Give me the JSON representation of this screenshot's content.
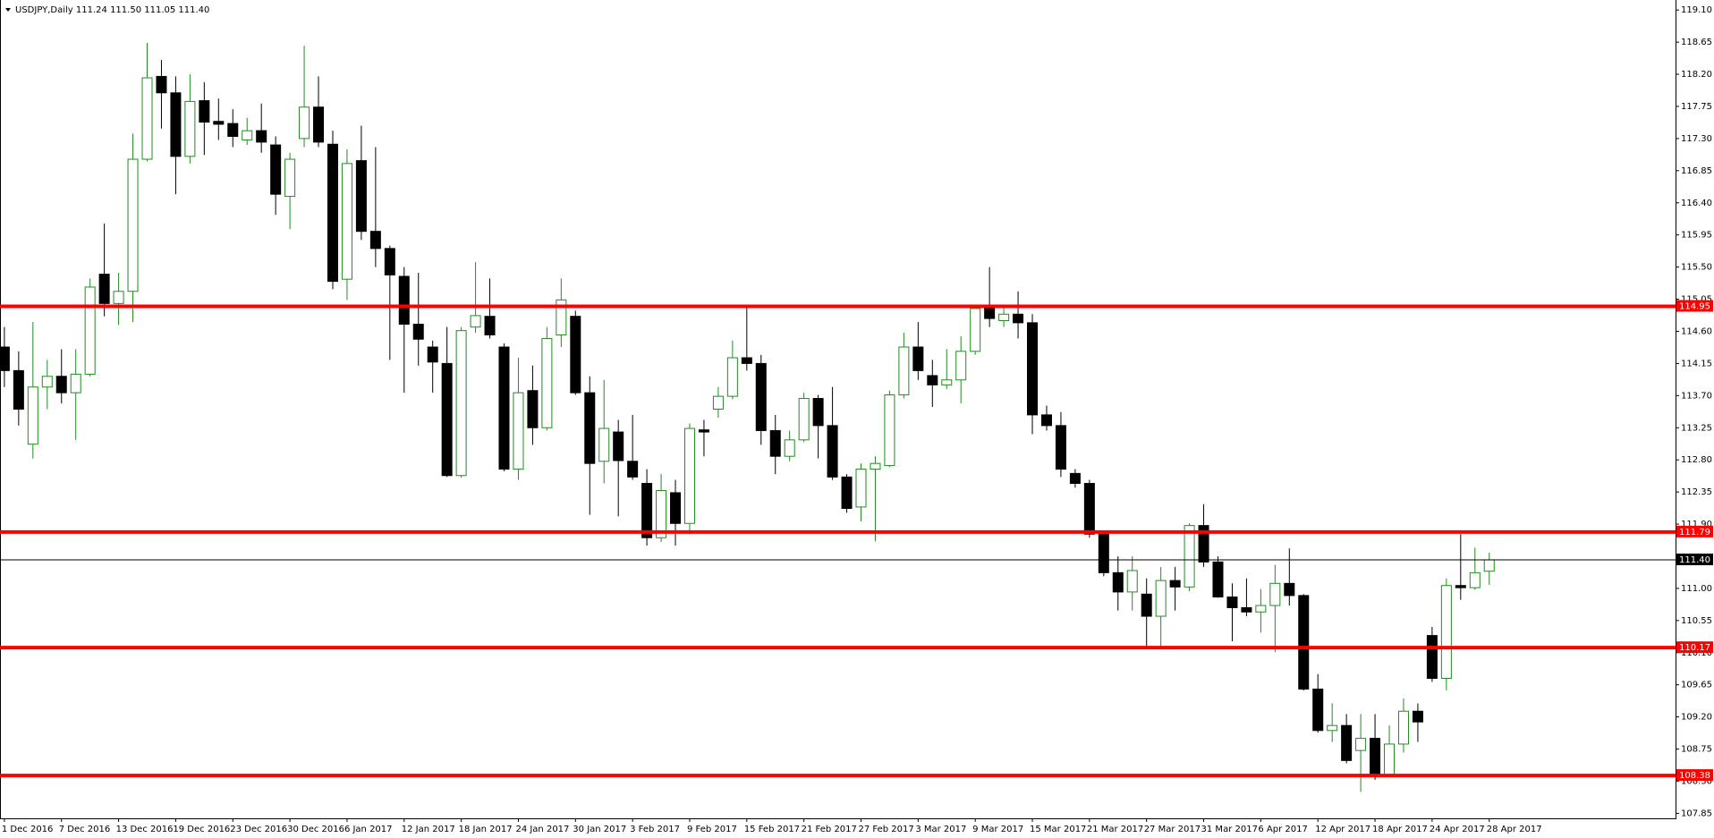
{
  "chart_data": {
    "type": "candlestick",
    "title": "USDJPY,Daily  111.24 111.50 111.05 111.40",
    "categories": [
      "1 Dec 2016",
      null,
      null,
      null,
      "7 Dec 2016",
      null,
      null,
      null,
      "13 Dec 2016",
      null,
      null,
      null,
      "19 Dec 2016",
      null,
      null,
      null,
      "23 Dec 2016",
      null,
      null,
      null,
      "30 Dec 2016",
      null,
      null,
      null,
      "6 Jan 2017",
      null,
      null,
      null,
      "12 Jan 2017",
      null,
      null,
      null,
      "18 Jan 2017",
      null,
      null,
      null,
      "24 Jan 2017",
      null,
      null,
      null,
      "30 Jan 2017",
      null,
      null,
      null,
      "3 Feb 2017",
      null,
      null,
      null,
      "9 Feb 2017",
      null,
      null,
      null,
      "15 Feb 2017",
      null,
      null,
      null,
      "21 Feb 2017",
      null,
      null,
      null,
      "27 Feb 2017",
      null,
      null,
      null,
      "3 Mar 2017",
      null,
      null,
      null,
      "9 Mar 2017",
      null,
      null,
      null,
      "15 Mar 2017",
      null,
      null,
      null,
      "21 Mar 2017",
      null,
      null,
      null,
      "27 Mar 2017",
      null,
      null,
      null,
      "31 Mar 2017",
      null,
      null,
      null,
      "6 Apr 2017",
      null,
      null,
      null,
      "12 Apr 2017",
      null,
      null,
      null,
      "18 Apr 2017",
      null,
      null,
      null,
      "24 Apr 2017",
      null,
      null,
      null,
      "28 Apr 2017"
    ],
    "open": [
      114.38,
      114.05,
      113.02,
      113.82,
      113.97,
      113.74,
      114.0,
      115.4,
      114.99,
      115.16,
      117.01,
      118.17,
      117.94,
      117.05,
      117.83,
      117.54,
      117.51,
      117.28,
      117.41,
      117.21,
      116.49,
      117.3,
      117.74,
      117.22,
      115.33,
      116.99,
      116.0,
      115.76,
      115.37,
      114.7,
      114.38,
      114.15,
      112.58,
      114.66,
      114.81,
      114.38,
      112.67,
      113.77,
      113.25,
      114.55,
      114.81,
      113.74,
      112.78,
      113.19,
      112.78,
      112.47,
      111.71,
      112.34,
      111.91,
      113.22,
      113.51,
      113.69,
      114.23,
      114.15,
      113.21,
      112.85,
      113.08,
      113.66,
      113.28,
      112.56,
      112.14,
      112.67,
      112.72,
      113.71,
      114.38,
      113.98,
      113.85,
      113.92,
      114.32,
      114.92,
      114.75,
      114.84,
      114.72,
      113.43,
      113.28,
      112.61,
      112.47,
      111.76,
      111.22,
      110.95,
      110.92,
      110.61,
      111.11,
      111.02,
      111.88,
      111.37,
      110.88,
      110.73,
      110.67,
      110.76,
      111.07,
      110.9,
      109.59,
      109.01,
      109.08,
      108.73,
      108.9,
      108.37,
      108.82,
      109.28,
      110.34,
      109.74,
      111.04,
      111.01,
      111.24
    ],
    "high": [
      114.66,
      114.32,
      114.73,
      114.2,
      114.35,
      114.35,
      115.34,
      116.11,
      115.42,
      117.37,
      118.64,
      118.4,
      118.17,
      118.2,
      118.09,
      117.86,
      117.71,
      117.59,
      117.79,
      117.33,
      117.1,
      118.6,
      118.17,
      117.41,
      117.15,
      117.48,
      117.18,
      115.8,
      115.5,
      115.42,
      114.47,
      114.66,
      114.66,
      115.57,
      115.34,
      114.43,
      114.23,
      114.12,
      114.66,
      115.34,
      114.89,
      113.97,
      113.92,
      113.36,
      113.43,
      112.67,
      112.6,
      112.52,
      113.31,
      113.36,
      113.82,
      114.47,
      114.96,
      114.27,
      113.43,
      113.21,
      113.74,
      113.71,
      113.82,
      112.6,
      112.75,
      112.85,
      113.77,
      114.58,
      114.73,
      114.2,
      114.35,
      114.53,
      114.96,
      115.5,
      114.96,
      115.16,
      114.84,
      113.56,
      113.47,
      112.67,
      112.52,
      111.79,
      111.45,
      111.45,
      111.14,
      111.3,
      111.3,
      111.91,
      112.18,
      111.45,
      111.07,
      111.14,
      110.99,
      111.33,
      111.56,
      110.92,
      109.8,
      109.39,
      109.24,
      109.24,
      109.24,
      109.08,
      109.46,
      109.39,
      110.46,
      111.14,
      111.76,
      111.57,
      111.5
    ],
    "low": [
      113.82,
      113.28,
      112.82,
      113.51,
      113.59,
      113.08,
      113.97,
      114.81,
      114.69,
      114.73,
      116.98,
      117.44,
      116.52,
      116.95,
      117.07,
      117.28,
      117.18,
      117.21,
      117.1,
      116.23,
      116.03,
      117.18,
      117.18,
      115.19,
      115.04,
      115.88,
      115.5,
      114.2,
      113.74,
      114.12,
      113.74,
      112.56,
      112.55,
      114.58,
      114.5,
      112.64,
      112.52,
      113.01,
      113.21,
      114.38,
      113.71,
      112.03,
      112.47,
      112.01,
      112.52,
      111.6,
      111.65,
      111.6,
      111.76,
      112.85,
      113.39,
      113.65,
      114.05,
      113.01,
      112.6,
      112.78,
      113.05,
      112.82,
      112.52,
      112.06,
      111.94,
      111.66,
      112.7,
      113.66,
      113.92,
      113.54,
      113.79,
      113.59,
      114.27,
      114.66,
      114.66,
      114.5,
      113.16,
      113.21,
      112.56,
      112.41,
      111.71,
      111.17,
      110.69,
      110.69,
      110.15,
      110.18,
      110.69,
      110.96,
      111.3,
      110.87,
      110.26,
      110.61,
      110.38,
      110.11,
      110.76,
      109.57,
      108.98,
      108.85,
      108.55,
      108.15,
      108.32,
      108.37,
      108.7,
      108.85,
      109.69,
      109.57,
      110.84,
      110.98,
      111.05
    ],
    "close": [
      114.05,
      113.51,
      113.82,
      113.97,
      113.74,
      114.0,
      115.22,
      114.99,
      115.16,
      117.01,
      118.15,
      117.94,
      117.05,
      117.82,
      117.53,
      117.5,
      117.33,
      117.41,
      117.25,
      116.52,
      117.01,
      117.74,
      117.25,
      115.3,
      116.95,
      116.0,
      115.76,
      115.39,
      114.7,
      114.49,
      114.17,
      112.58,
      114.61,
      114.82,
      114.55,
      112.67,
      113.74,
      113.25,
      114.5,
      115.04,
      113.74,
      112.75,
      113.24,
      112.79,
      112.56,
      111.71,
      112.37,
      111.91,
      113.24,
      113.19,
      113.69,
      114.23,
      114.15,
      113.21,
      112.85,
      113.08,
      113.66,
      113.28,
      112.56,
      112.12,
      112.67,
      112.75,
      113.71,
      114.38,
      114.05,
      113.85,
      113.92,
      114.32,
      114.92,
      114.78,
      114.84,
      114.72,
      113.43,
      113.28,
      112.67,
      112.47,
      111.76,
      111.22,
      110.95,
      111.25,
      110.61,
      111.11,
      111.02,
      111.88,
      111.37,
      110.88,
      110.73,
      110.67,
      110.76,
      111.07,
      110.9,
      109.59,
      109.01,
      109.08,
      108.59,
      108.9,
      108.37,
      108.82,
      109.28,
      109.13,
      109.74,
      111.04,
      111.01,
      111.22,
      111.4
    ],
    "up_color": "#228b22",
    "down_color": "#000000",
    "ylim": [
      107.78,
      119.24
    ],
    "yticks": [
      {
        "value": 119.1,
        "label": "119.10"
      },
      118.65,
      {
        "value": 118.2,
        "label": "118.20"
      },
      117.75,
      {
        "value": 117.3,
        "label": "117.30"
      },
      116.85,
      {
        "value": 116.4,
        "label": "116.40"
      },
      115.95,
      {
        "value": 115.5,
        "label": "115.50"
      },
      115.05,
      {
        "value": 114.6,
        "label": "114.60"
      },
      114.15,
      {
        "value": 113.7,
        "label": "113.70"
      },
      113.25,
      {
        "value": 112.8,
        "label": "112.80"
      },
      112.35,
      {
        "value": 111.9,
        "label": "111.90"
      },
      {
        "value": 111,
        "label": "111.00"
      },
      110.55,
      {
        "value": 110.1,
        "label": "110.10"
      },
      109.65,
      {
        "value": 109.2,
        "label": "109.20"
      },
      108.75,
      {
        "value": 108.3,
        "label": "108.30"
      },
      107.85
    ],
    "levels": [
      114.95,
      111.79,
      110.17,
      108.38
    ],
    "level_color": "#ff0000",
    "price_line": {
      "value": 111.4,
      "label": "111.40"
    },
    "grid": false
  }
}
